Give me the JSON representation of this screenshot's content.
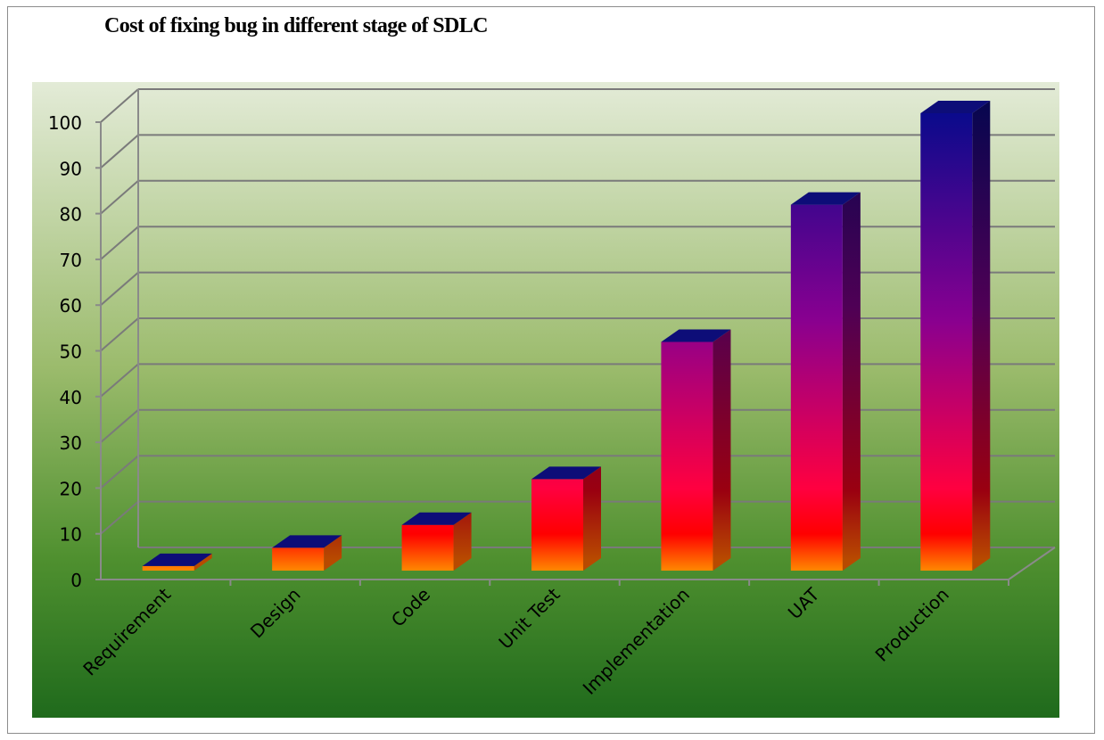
{
  "chart_data": {
    "type": "bar",
    "title": "Cost of fixing bug in different stage of SDLC",
    "xlabel": "",
    "ylabel": "",
    "categories": [
      "Requirement",
      "Design",
      "Code",
      "Unit Test",
      "Implementation",
      "UAT",
      "Production"
    ],
    "values": [
      1,
      5,
      10,
      20,
      50,
      80,
      100
    ],
    "ylim": [
      0,
      100
    ],
    "y_ticks": [
      "0",
      "10",
      "20",
      "30",
      "40",
      "50",
      "60",
      "70",
      "80",
      "90",
      "100"
    ],
    "grid": true,
    "legend": "none",
    "style": "3d-column",
    "colors": {
      "background_top": "#e3ebd7",
      "background_bottom": "#1f6a1c",
      "bar_top": "#0a0a8c",
      "bar_mid": "#880090",
      "bar_low": "#ff0000",
      "bar_base": "#ff8800",
      "gridline": "#7a7a7a"
    }
  }
}
